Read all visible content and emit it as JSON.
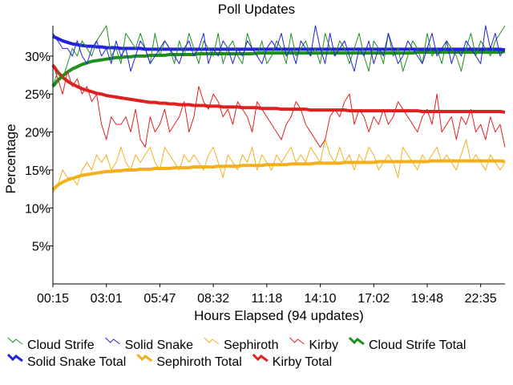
{
  "chart_data": {
    "type": "line",
    "title": "Poll Updates",
    "xlabel": "Hours Elapsed (94 updates)",
    "ylabel": "Percentage",
    "ylim": [
      0,
      34
    ],
    "yticks": [
      "5%",
      "10%",
      "15%",
      "20%",
      "25%",
      "30%"
    ],
    "ytick_values": [
      5,
      10,
      15,
      20,
      25,
      30
    ],
    "xlim": [
      0,
      93
    ],
    "xticks": [
      "00:15",
      "03:01",
      "05:47",
      "08:32",
      "11:18",
      "14:10",
      "17:02",
      "19:48",
      "22:35"
    ],
    "xtick_positions": [
      0,
      11,
      22,
      33,
      44,
      55,
      66,
      77,
      88
    ],
    "grid": false,
    "legend_position": "bottom",
    "series": [
      {
        "name": "Cloud Strife",
        "color": "#1f8f1f",
        "style": "thin",
        "values": [
          26,
          28,
          27,
          29,
          31,
          30,
          32,
          31,
          30,
          32,
          33,
          34,
          30,
          31,
          29,
          33,
          32,
          31,
          33,
          31,
          29,
          33,
          30,
          32,
          31,
          29,
          32,
          30,
          33,
          31,
          29,
          32,
          31,
          30,
          33,
          29,
          31,
          32,
          30,
          29,
          33,
          31,
          30,
          32,
          29,
          30,
          32,
          31,
          29,
          33,
          30,
          31,
          32,
          30,
          31,
          29,
          33,
          31,
          30,
          32,
          31,
          29,
          31,
          33,
          30,
          28,
          32,
          31,
          29,
          33,
          30,
          31,
          28,
          30,
          32,
          31,
          29,
          33,
          30,
          31,
          29,
          32,
          31,
          30,
          28,
          31,
          33,
          30,
          32,
          31,
          30,
          32,
          33,
          34
        ]
      },
      {
        "name": "Solid Snake",
        "color": "#2222dd",
        "style": "thin",
        "values": [
          33,
          32,
          31,
          31,
          30,
          32,
          30,
          29,
          31,
          32,
          30,
          31,
          29,
          32,
          30,
          31,
          28,
          30,
          32,
          31,
          29,
          30,
          31,
          32,
          31,
          30,
          29,
          31,
          32,
          30,
          31,
          33,
          29,
          31,
          30,
          32,
          31,
          29,
          31,
          30,
          32,
          31,
          30,
          29,
          31,
          32,
          31,
          33,
          30,
          31,
          29,
          32,
          31,
          30,
          34,
          31,
          29,
          33,
          30,
          31,
          32,
          30,
          28,
          31,
          30,
          32,
          29,
          31,
          30,
          33,
          31,
          29,
          30,
          32,
          31,
          30,
          29,
          31,
          33,
          30,
          31,
          32,
          29,
          31,
          30,
          32,
          31,
          30,
          29,
          34,
          31,
          33,
          30,
          31
        ]
      },
      {
        "name": "Sephiroth",
        "color": "#f2b01e",
        "style": "thin",
        "values": [
          12,
          13,
          15,
          14,
          14,
          13,
          15,
          16,
          15,
          17,
          16,
          17,
          15,
          16,
          18,
          16,
          15,
          17,
          16,
          17,
          18,
          16,
          15,
          18,
          17,
          16,
          15,
          17,
          16,
          17,
          16,
          15,
          17,
          18,
          16,
          14,
          17,
          16,
          15,
          17,
          16,
          18,
          15,
          17,
          16,
          15,
          17,
          16,
          17,
          18,
          16,
          17,
          16,
          18,
          17,
          16,
          19,
          17,
          16,
          18,
          16,
          17,
          15,
          17,
          16,
          18,
          17,
          15,
          16,
          17,
          16,
          14,
          18,
          17,
          16,
          15,
          17,
          16,
          17,
          18,
          16,
          17,
          16,
          15,
          17,
          19,
          16,
          17,
          16,
          15,
          17,
          16,
          15,
          16
        ]
      },
      {
        "name": "Kirby",
        "color": "#e02020",
        "style": "thin",
        "values": [
          29,
          27,
          25,
          28,
          26,
          27,
          25,
          26,
          24,
          25,
          21,
          19,
          22,
          21,
          21,
          22,
          20,
          23,
          19,
          18,
          22,
          20,
          21,
          23,
          20,
          21,
          22,
          24,
          20,
          22,
          26,
          24,
          23,
          25,
          24,
          22,
          23,
          21,
          24,
          23,
          22,
          20,
          24,
          23,
          22,
          21,
          20,
          19,
          21,
          22,
          24,
          23,
          21,
          20,
          19,
          18,
          19,
          22,
          23,
          22,
          24,
          25,
          21,
          23,
          22,
          20,
          22,
          21,
          23,
          21,
          22,
          24,
          23,
          22,
          21,
          20,
          22,
          23,
          21,
          25,
          20,
          21,
          22,
          19,
          22,
          21,
          23,
          20,
          21,
          19,
          22,
          20,
          21,
          18
        ]
      },
      {
        "name": "Cloud Strife Total",
        "color": "#1f8f1f",
        "style": "thick",
        "values": [
          26.0,
          26.8,
          27.4,
          27.9,
          28.3,
          28.6,
          28.9,
          29.1,
          29.3,
          29.4,
          29.5,
          29.6,
          29.7,
          29.8,
          29.8,
          29.9,
          29.9,
          30.0,
          30.0,
          30.0,
          30.1,
          30.1,
          30.1,
          30.1,
          30.2,
          30.2,
          30.2,
          30.2,
          30.2,
          30.2,
          30.3,
          30.3,
          30.3,
          30.3,
          30.3,
          30.3,
          30.3,
          30.3,
          30.3,
          30.3,
          30.3,
          30.3,
          30.4,
          30.4,
          30.4,
          30.4,
          30.4,
          30.4,
          30.4,
          30.4,
          30.4,
          30.4,
          30.4,
          30.4,
          30.4,
          30.4,
          30.4,
          30.4,
          30.4,
          30.4,
          30.4,
          30.4,
          30.4,
          30.4,
          30.4,
          30.4,
          30.4,
          30.4,
          30.4,
          30.4,
          30.4,
          30.4,
          30.4,
          30.4,
          30.4,
          30.5,
          30.5,
          30.5,
          30.5,
          30.5,
          30.5,
          30.5,
          30.5,
          30.5,
          30.5,
          30.5,
          30.5,
          30.5,
          30.5,
          30.5,
          30.5,
          30.5,
          30.5,
          30.6
        ]
      },
      {
        "name": "Solid Snake Total",
        "color": "#2222dd",
        "style": "thick",
        "values": [
          32.6,
          32.3,
          32.0,
          31.8,
          31.6,
          31.5,
          31.4,
          31.3,
          31.3,
          31.2,
          31.2,
          31.1,
          31.1,
          31.1,
          31.0,
          31.0,
          31.0,
          31.0,
          31.0,
          30.9,
          30.9,
          30.9,
          30.9,
          30.9,
          30.9,
          30.9,
          30.9,
          30.9,
          30.9,
          30.9,
          30.9,
          30.9,
          30.9,
          30.9,
          30.9,
          30.9,
          30.9,
          30.9,
          30.9,
          30.9,
          30.9,
          30.9,
          30.9,
          30.9,
          30.9,
          30.9,
          30.9,
          30.9,
          30.9,
          30.9,
          30.9,
          30.9,
          30.9,
          30.9,
          30.9,
          30.9,
          30.9,
          30.9,
          30.9,
          30.9,
          30.9,
          30.9,
          30.9,
          30.9,
          30.9,
          30.9,
          30.9,
          30.9,
          30.9,
          30.9,
          30.9,
          30.9,
          30.9,
          30.9,
          30.9,
          30.9,
          30.9,
          30.9,
          30.9,
          30.9,
          30.9,
          30.9,
          30.9,
          30.9,
          30.9,
          30.9,
          30.9,
          30.9,
          30.9,
          30.9,
          30.9,
          30.9,
          30.9,
          30.8
        ]
      },
      {
        "name": "Sephiroth Total",
        "color": "#f2b01e",
        "style": "thick",
        "values": [
          12.4,
          13.0,
          13.4,
          13.7,
          13.9,
          14.1,
          14.3,
          14.4,
          14.5,
          14.6,
          14.7,
          14.8,
          14.8,
          14.9,
          14.9,
          15.0,
          15.0,
          15.0,
          15.1,
          15.1,
          15.1,
          15.2,
          15.2,
          15.2,
          15.2,
          15.3,
          15.3,
          15.3,
          15.3,
          15.4,
          15.4,
          15.4,
          15.4,
          15.4,
          15.5,
          15.5,
          15.5,
          15.5,
          15.5,
          15.6,
          15.6,
          15.6,
          15.6,
          15.6,
          15.7,
          15.7,
          15.7,
          15.7,
          15.7,
          15.8,
          15.8,
          15.8,
          15.8,
          15.8,
          15.9,
          15.9,
          15.9,
          15.9,
          15.9,
          15.9,
          16.0,
          16.0,
          16.0,
          16.0,
          16.0,
          16.0,
          16.0,
          16.1,
          16.1,
          16.1,
          16.1,
          16.1,
          16.1,
          16.1,
          16.1,
          16.1,
          16.1,
          16.1,
          16.2,
          16.2,
          16.2,
          16.2,
          16.2,
          16.2,
          16.2,
          16.2,
          16.2,
          16.2,
          16.2,
          16.2,
          16.2,
          16.2,
          16.2,
          16.1
        ]
      },
      {
        "name": "Kirby Total",
        "color": "#e02020",
        "style": "thick",
        "values": [
          28.8,
          27.9,
          27.2,
          26.7,
          26.3,
          26.0,
          25.7,
          25.5,
          25.3,
          25.1,
          25.0,
          24.8,
          24.7,
          24.6,
          24.5,
          24.4,
          24.3,
          24.2,
          24.1,
          24.0,
          23.9,
          23.9,
          23.8,
          23.8,
          23.7,
          23.7,
          23.6,
          23.6,
          23.6,
          23.5,
          23.5,
          23.5,
          23.4,
          23.4,
          23.4,
          23.3,
          23.3,
          23.3,
          23.3,
          23.2,
          23.2,
          23.2,
          23.2,
          23.1,
          23.1,
          23.1,
          23.1,
          23.0,
          23.0,
          23.0,
          23.0,
          23.0,
          23.0,
          22.9,
          22.9,
          22.9,
          22.9,
          22.9,
          22.9,
          22.9,
          22.9,
          22.8,
          22.8,
          22.8,
          22.8,
          22.8,
          22.8,
          22.8,
          22.8,
          22.8,
          22.8,
          22.8,
          22.8,
          22.8,
          22.8,
          22.8,
          22.7,
          22.7,
          22.7,
          22.7,
          22.7,
          22.7,
          22.7,
          22.7,
          22.7,
          22.7,
          22.7,
          22.7,
          22.7,
          22.7,
          22.7,
          22.7,
          22.7,
          22.6
        ]
      }
    ]
  }
}
